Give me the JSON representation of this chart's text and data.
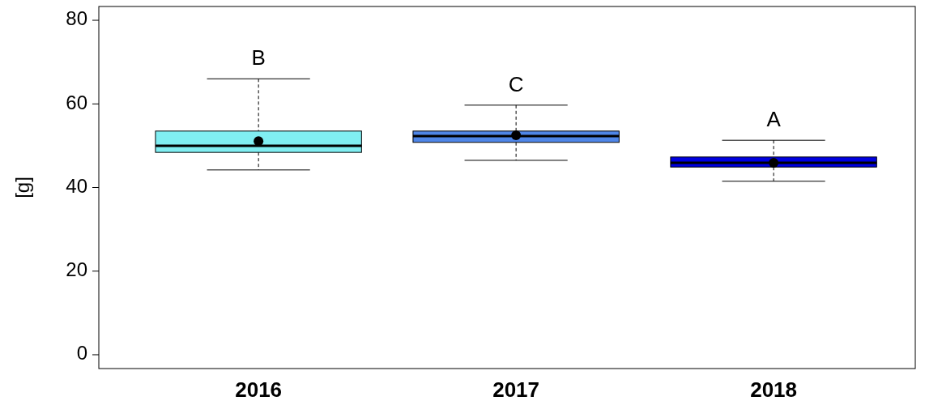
{
  "chart_data": {
    "type": "box",
    "ylabel": "[g]",
    "categories": [
      "2016",
      "2017",
      "2018"
    ],
    "colors": [
      "#80eef2",
      "#4f86e8",
      "#0000e0"
    ],
    "boxes": [
      {
        "low": 44.2,
        "q1": 48.4,
        "median": 50,
        "q3": 53.5,
        "high": 66,
        "mean": 51.1
      },
      {
        "low": 46.5,
        "q1": 50.8,
        "median": 52.3,
        "q3": 53.5,
        "high": 59.7,
        "mean": 52.5
      },
      {
        "low": 41.5,
        "q1": 44.9,
        "median": 45.9,
        "q3": 47.3,
        "high": 51.3,
        "mean": 45.9
      }
    ],
    "ylim": [
      -3.3,
      83.3
    ],
    "yticks": [
      0,
      20,
      40,
      60,
      80
    ],
    "grid": false,
    "marker": "circle",
    "annotations": [
      "B",
      "C",
      "A"
    ]
  }
}
